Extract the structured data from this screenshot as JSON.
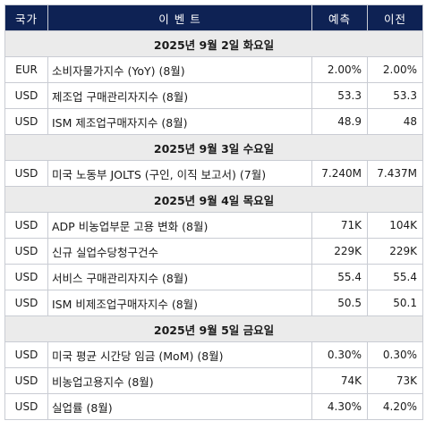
{
  "header": {
    "country": "국가",
    "event": "이 벤 트",
    "forecast": "예측",
    "previous": "이전"
  },
  "groups": [
    {
      "date": "2025년 9월 2일 화요일",
      "rows": [
        {
          "country": "EUR",
          "event": "소비자물가지수 (YoY) (8월)",
          "forecast": "2.00%",
          "previous": "2.00%"
        },
        {
          "country": "USD",
          "event": "제조업 구매관리자지수 (8월)",
          "forecast": "53.3",
          "previous": "53.3"
        },
        {
          "country": "USD",
          "event": "ISM 제조업구매자지수 (8월)",
          "forecast": "48.9",
          "previous": "48"
        }
      ]
    },
    {
      "date": "2025년 9월 3일 수요일",
      "rows": [
        {
          "country": "USD",
          "event": "미국 노동부 JOLTS (구인, 이직 보고서) (7월)",
          "forecast": "7.240M",
          "previous": "7.437M"
        }
      ]
    },
    {
      "date": "2025년 9월 4일 목요일",
      "rows": [
        {
          "country": "USD",
          "event": "ADP 비농업부문 고용 변화 (8월)",
          "forecast": "71K",
          "previous": "104K"
        },
        {
          "country": "USD",
          "event": "신규 실업수당청구건수",
          "forecast": "229K",
          "previous": "229K"
        },
        {
          "country": "USD",
          "event": "서비스 구매관리자지수 (8월)",
          "forecast": "55.4",
          "previous": "55.4"
        },
        {
          "country": "USD",
          "event": "ISM 비제조업구매자지수 (8월)",
          "forecast": "50.5",
          "previous": "50.1"
        }
      ]
    },
    {
      "date": "2025년 9월 5일 금요일",
      "rows": [
        {
          "country": "USD",
          "event": "미국 평균 시간당 임금 (MoM) (8월)",
          "forecast": "0.30%",
          "previous": "0.30%"
        },
        {
          "country": "USD",
          "event": "비농업고용지수 (8월)",
          "forecast": "74K",
          "previous": "73K"
        },
        {
          "country": "USD",
          "event": "실업률 (8월)",
          "forecast": "4.30%",
          "previous": "4.20%"
        }
      ]
    }
  ]
}
